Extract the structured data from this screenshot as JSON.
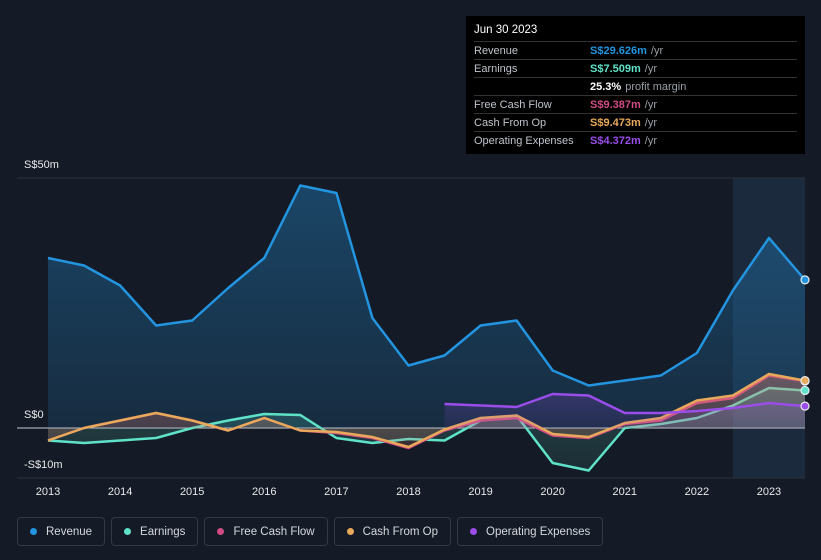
{
  "chart_data": {
    "type": "line",
    "x": [
      2013,
      2013.5,
      2014,
      2014.5,
      2015,
      2015.5,
      2016,
      2016.5,
      2017,
      2017.5,
      2018,
      2018.5,
      2019,
      2019.5,
      2020,
      2020.5,
      2021,
      2021.5,
      2022,
      2022.5,
      2023,
      2023.5
    ],
    "xlim": [
      2012.57,
      2023.5
    ],
    "xticks": [
      2013,
      2014,
      2015,
      2016,
      2017,
      2018,
      2019,
      2020,
      2021,
      2022,
      2023
    ],
    "ylim": [
      -10,
      50
    ],
    "yticks": [
      {
        "value": 50,
        "label": "S$50m"
      },
      {
        "value": 0,
        "label": "S$0"
      },
      {
        "value": -10,
        "label": "-S$10m"
      }
    ],
    "grid": true,
    "highlight_from": 2022.5,
    "series": [
      {
        "name": "Revenue",
        "color": "#2394df",
        "values": [
          34,
          32.5,
          28.5,
          20.5,
          21.5,
          28,
          34,
          48.5,
          47,
          22,
          12.5,
          14.5,
          20.5,
          21.5,
          11.5,
          8.5,
          9.5,
          10.5,
          15,
          27.5,
          38,
          29.626
        ]
      },
      {
        "name": "Earnings",
        "color": "#5fe3c8",
        "values": [
          -2.5,
          -3,
          -2.5,
          -2,
          0,
          1.5,
          2.8,
          2.6,
          -2,
          -3,
          -2.2,
          -2.5,
          1.5,
          2.5,
          -7,
          -8.5,
          0,
          0.8,
          2,
          4.5,
          8,
          7.509
        ]
      },
      {
        "name": "Free Cash Flow",
        "color": "#d14b84",
        "values": [
          -2.5,
          0,
          1.5,
          3,
          1.5,
          -0.5,
          2,
          -0.5,
          -1,
          -2,
          -4,
          -0.5,
          1.5,
          2,
          -1.5,
          -2,
          0.8,
          1.5,
          5,
          6,
          10.5,
          9.387
        ]
      },
      {
        "name": "Cash From Op",
        "color": "#e8a95a",
        "values": [
          -2.5,
          0,
          1.5,
          3,
          1.5,
          -0.5,
          2,
          -0.5,
          -0.8,
          -1.8,
          -3.8,
          -0.3,
          2,
          2.5,
          -1.2,
          -1.8,
          1,
          2,
          5.5,
          6.5,
          10.8,
          9.473
        ]
      },
      {
        "name": "Operating Expenses",
        "color": "#9a4de8",
        "values": [
          null,
          null,
          null,
          null,
          null,
          null,
          null,
          null,
          null,
          null,
          null,
          4.8,
          4.5,
          4.2,
          6.8,
          6.5,
          3,
          3,
          3.4,
          4,
          5,
          4.372
        ]
      }
    ],
    "tooltip": {
      "date": "Jun 30 2023",
      "rows": [
        {
          "label": "Revenue",
          "value": "S$29.626m",
          "unit": "/yr"
        },
        {
          "label": "Earnings",
          "value": "S$7.509m",
          "unit": "/yr"
        },
        {
          "label": "Free Cash Flow",
          "value": "S$9.387m",
          "unit": "/yr"
        },
        {
          "label": "Cash From Op",
          "value": "S$9.473m",
          "unit": "/yr"
        },
        {
          "label": "Operating Expenses",
          "value": "S$4.372m",
          "unit": "/yr"
        }
      ],
      "margin": {
        "value": "25.3%",
        "label": "profit margin"
      }
    }
  }
}
